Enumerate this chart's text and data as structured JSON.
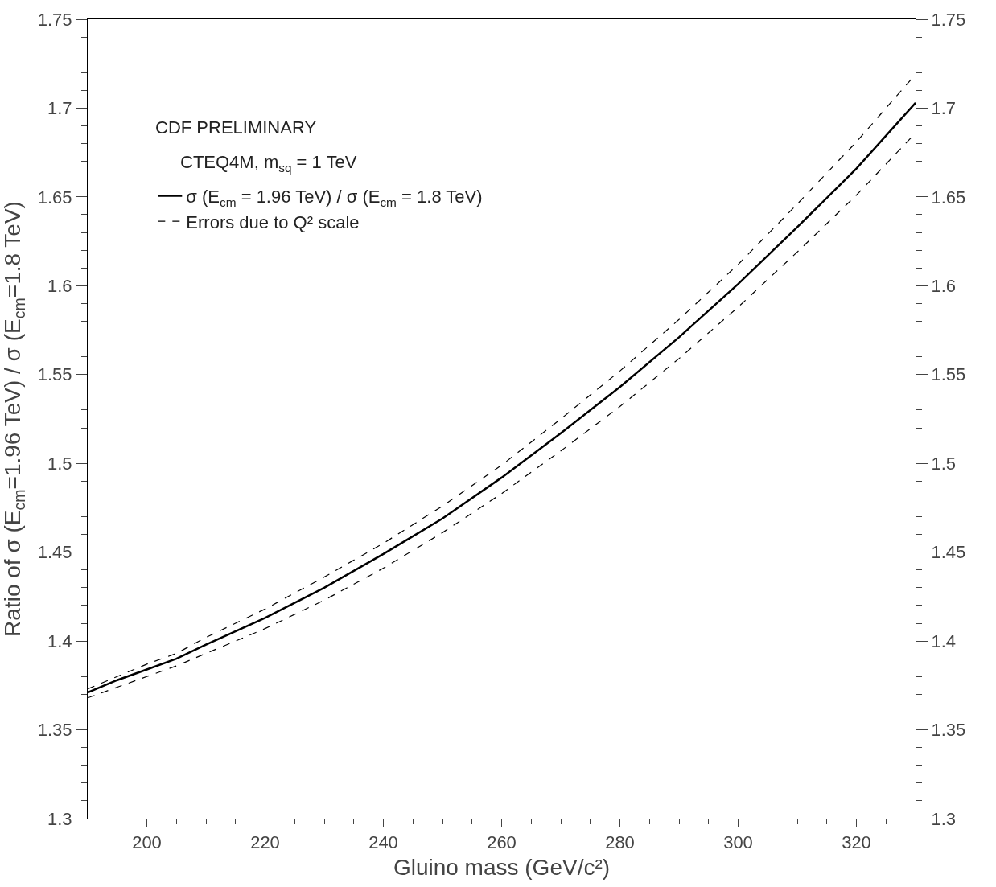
{
  "chart_data": {
    "type": "line",
    "xlabel": "Gluino mass (GeV/c²)",
    "ylabel": "Ratio of σ (E$_{cm}$=1.96 TeV) / σ (E$_{cm}$=1.8 TeV)",
    "x": [
      190,
      195,
      200,
      205,
      210,
      220,
      230,
      240,
      250,
      260,
      270,
      280,
      290,
      300,
      310,
      320,
      330
    ],
    "series": [
      {
        "name": "σ (E$_{cm}$ = 1.96 TeV) / σ (E$_{cm}$ = 1.8 TeV)",
        "color": "#000000",
        "line_style": "solid",
        "values": [
          1.371,
          1.378,
          1.384,
          1.39,
          1.398,
          1.413,
          1.43,
          1.449,
          1.469,
          1.492,
          1.517,
          1.543,
          1.571,
          1.601,
          1.633,
          1.666,
          1.703
        ]
      },
      {
        "name": "Errors due to Q² scale",
        "color": "#000000",
        "line_style": "dashed",
        "values": [
          1.373,
          1.38,
          1.387,
          1.393,
          1.402,
          1.418,
          1.436,
          1.455,
          1.476,
          1.499,
          1.525,
          1.552,
          1.581,
          1.612,
          1.646,
          1.681,
          1.719
        ]
      },
      {
        "color": "#000000",
        "line_style": "dashed",
        "axis": "y2",
        "values": [
          1.368,
          1.374,
          1.38,
          1.386,
          1.393,
          1.407,
          1.423,
          1.441,
          1.461,
          1.483,
          1.507,
          1.532,
          1.559,
          1.588,
          1.619,
          1.651,
          1.686
        ]
      }
    ],
    "annotations": [
      "CDF PRELIMINARY",
      "CTEQ4M, m$_{sq}$ = 1 TeV"
    ],
    "xlim": [
      190,
      330
    ],
    "xticks": [
      200,
      220,
      240,
      260,
      280,
      300,
      320
    ],
    "ylim": [
      1.3,
      1.75
    ],
    "yticks": [
      1.3,
      1.35,
      1.4,
      1.45,
      1.5,
      1.55,
      1.6,
      1.65,
      1.7,
      1.75
    ],
    "y2lim": [
      1.3,
      1.75
    ],
    "y2ticks": [
      1.3,
      1.35,
      1.4,
      1.45,
      1.5,
      1.55,
      1.6,
      1.65,
      1.7,
      1.75
    ],
    "legend": "top left",
    "marker": "none"
  }
}
